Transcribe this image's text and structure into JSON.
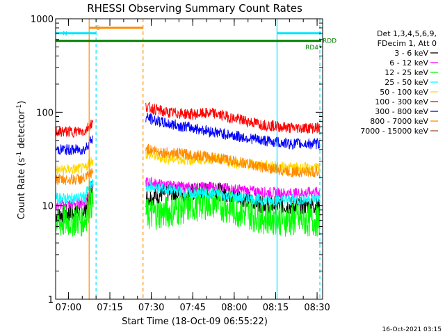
{
  "chart_data": {
    "type": "line",
    "title": "RHESSI Observing Summary Count Rates",
    "xlabel": "Start Time (18-Oct-09 06:55:22)",
    "ylabel": "Count Rate (s⁻¹ detector⁻¹)",
    "yscale": "log",
    "ylim": [
      1,
      1000
    ],
    "xlim": [
      "06:55:22",
      "08:32:00"
    ],
    "x_ticks": [
      "07:00",
      "07:15",
      "07:30",
      "07:45",
      "08:00",
      "08:15",
      "08:30"
    ],
    "y_ticks": [
      "1",
      "10",
      "100",
      "1000"
    ],
    "legend_header": [
      "Det 1,3,4,5,6,9,",
      "FDecim 1, Att 0"
    ],
    "footer": "16-Oct-2021 03:15",
    "series": [
      {
        "name": "3 - 6 keV",
        "color": "#000000",
        "points": [
          [
            "06:55:22",
            8
          ],
          [
            "07:02",
            8.5
          ],
          [
            "07:06",
            9
          ],
          [
            "07:08",
            13
          ],
          [
            "07:28",
            12
          ],
          [
            "07:35",
            13.5
          ],
          [
            "07:45",
            14
          ],
          [
            "07:52",
            14.5
          ],
          [
            "08:00",
            13
          ],
          [
            "08:10",
            10.5
          ],
          [
            "08:20",
            10
          ],
          [
            "08:30",
            10
          ]
        ]
      },
      {
        "name": "6 - 12 keV",
        "color": "#ff00ff",
        "points": [
          [
            "06:55:22",
            10
          ],
          [
            "07:02",
            10.5
          ],
          [
            "07:06",
            11
          ],
          [
            "07:08",
            16
          ],
          [
            "07:28",
            18
          ],
          [
            "07:35",
            16.5
          ],
          [
            "07:45",
            15.5
          ],
          [
            "07:52",
            16
          ],
          [
            "08:00",
            15
          ],
          [
            "08:10",
            14
          ],
          [
            "08:20",
            13.5
          ],
          [
            "08:30",
            14
          ]
        ]
      },
      {
        "name": "12 - 25 keV",
        "color": "#00ff00",
        "points": [
          [
            "06:55:22",
            6.5
          ],
          [
            "07:02",
            7
          ],
          [
            "07:06",
            7
          ],
          [
            "07:08",
            11
          ],
          [
            "07:28",
            8
          ],
          [
            "07:35",
            8.5
          ],
          [
            "07:45",
            10
          ],
          [
            "07:52",
            11
          ],
          [
            "08:00",
            9
          ],
          [
            "08:10",
            7.5
          ],
          [
            "08:20",
            7
          ],
          [
            "08:30",
            7
          ]
        ]
      },
      {
        "name": "25 - 50 keV",
        "color": "#00ffff",
        "points": [
          [
            "06:55:22",
            12
          ],
          [
            "07:02",
            12
          ],
          [
            "07:06",
            12.5
          ],
          [
            "07:08",
            17
          ],
          [
            "07:28",
            16
          ],
          [
            "07:35",
            15
          ],
          [
            "07:45",
            13.5
          ],
          [
            "07:52",
            13.5
          ],
          [
            "08:00",
            12.5
          ],
          [
            "08:10",
            11.5
          ],
          [
            "08:20",
            11.5
          ],
          [
            "08:30",
            12
          ]
        ]
      },
      {
        "name": "50 - 100 keV",
        "color": "#ffd700",
        "points": [
          [
            "06:55:22",
            24
          ],
          [
            "07:02",
            24.5
          ],
          [
            "07:06",
            25
          ],
          [
            "07:08",
            30
          ],
          [
            "07:28",
            36
          ],
          [
            "07:35",
            32
          ],
          [
            "07:45",
            31
          ],
          [
            "07:52",
            32
          ],
          [
            "08:00",
            29
          ],
          [
            "08:10",
            27
          ],
          [
            "08:20",
            25.5
          ],
          [
            "08:30",
            25
          ]
        ]
      },
      {
        "name": "100 - 300 keV",
        "color": "#ff0000",
        "points": [
          [
            "06:55:22",
            62
          ],
          [
            "07:02",
            62
          ],
          [
            "07:06",
            63
          ],
          [
            "07:08",
            75
          ],
          [
            "07:28",
            115
          ],
          [
            "07:35",
            100
          ],
          [
            "07:45",
            95
          ],
          [
            "07:52",
            98
          ],
          [
            "08:00",
            86
          ],
          [
            "08:10",
            74
          ],
          [
            "08:20",
            68
          ],
          [
            "08:30",
            68
          ]
        ]
      },
      {
        "name": "300 - 800 keV",
        "color": "#0000ff",
        "points": [
          [
            "06:55:22",
            40
          ],
          [
            "07:02",
            39.5
          ],
          [
            "07:06",
            40
          ],
          [
            "07:08",
            50
          ],
          [
            "07:28",
            88
          ],
          [
            "07:35",
            76
          ],
          [
            "07:45",
            68
          ],
          [
            "07:52",
            62
          ],
          [
            "08:00",
            56
          ],
          [
            "08:10",
            50
          ],
          [
            "08:20",
            46
          ],
          [
            "08:30",
            46
          ]
        ]
      },
      {
        "name": "800 - 7000 keV",
        "color": "#ff8c00",
        "points": [
          [
            "06:55:22",
            19
          ],
          [
            "07:02",
            19
          ],
          [
            "07:06",
            19.5
          ],
          [
            "07:08",
            22
          ],
          [
            "07:28",
            41
          ],
          [
            "07:35",
            37
          ],
          [
            "07:45",
            35
          ],
          [
            "07:52",
            33
          ],
          [
            "08:00",
            30
          ],
          [
            "08:10",
            26
          ],
          [
            "08:20",
            23
          ],
          [
            "08:30",
            23
          ]
        ]
      },
      {
        "name": "7000 - 15000 keV",
        "color": "#a0522d",
        "points": []
      }
    ],
    "intervals": [
      {
        "label": "S",
        "color": "#ff8c00",
        "start": "07:07:30",
        "end": "07:27:00",
        "y": 800
      },
      {
        "label": "N",
        "color": "#00e5ff",
        "start": "06:55:22",
        "end": "07:10:00",
        "y": 700
      },
      {
        "label": "",
        "color": "#00e5ff",
        "start": "08:15:30",
        "end": "08:31:30",
        "y": 700
      },
      {
        "label": "RD4",
        "color": "#008000",
        "start": "06:55:22",
        "end": "08:31:30",
        "y": 580
      },
      {
        "label": "RDD",
        "color": "#008000",
        "start": "08:31:00",
        "end": "08:31:30",
        "y": 500
      }
    ],
    "vlines": [
      {
        "time": "07:07:30",
        "color": "#ff8c00",
        "style": "solid"
      },
      {
        "time": "07:27:00",
        "color": "#ff8c00",
        "style": "dashed"
      },
      {
        "time": "07:10:00",
        "color": "#00e5ff",
        "style": "dashed"
      },
      {
        "time": "08:15:30",
        "color": "#00e5ff",
        "style": "solid"
      },
      {
        "time": "08:31:00",
        "color": "#00e5ff",
        "style": "dashed"
      }
    ],
    "gap": [
      "07:09:00",
      "07:28:00"
    ]
  }
}
